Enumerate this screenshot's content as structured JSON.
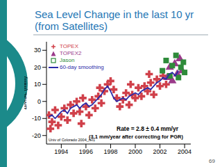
{
  "page_number": 69,
  "chart_data": {
    "type": "scatter",
    "title": "Sea Level Change in the last 10 yr (from Satellites)",
    "y_label": "ΔMSL (mm)",
    "annotations": [
      "Rate = 2.8 ± 0.4 mm/yr",
      "(3.1 mm/year after correcting for PGR)",
      "Univ of Colorado 2004_rel1"
    ],
    "legend": "top-left",
    "xlim": [
      1992.8,
      2004.5
    ],
    "xticks": [
      1994,
      1996,
      1998,
      2000,
      2002,
      2004
    ],
    "ylim": [
      -25,
      35
    ],
    "yticks": [
      -20,
      -10,
      0,
      10,
      20,
      30
    ],
    "series": [
      {
        "name": "TOPEX",
        "type": "scatter",
        "color": "#d0404a",
        "marker": "cross",
        "x": [
          1993.0,
          1993.125,
          1993.25,
          1993.5,
          1993.75,
          1994.0,
          1994.25,
          1994.5,
          1994.75,
          1995.0,
          1995.25,
          1995.5,
          1995.625,
          1995.75,
          1996.0,
          1996.25,
          1996.5,
          1996.75,
          1997.0,
          1997.125,
          1997.25,
          1997.5,
          1997.75,
          1998.0,
          1998.25,
          1998.5,
          1998.75,
          1999.0,
          1999.25,
          1999.5,
          1999.625,
          1999.75,
          2000.0,
          2000.25,
          2000.5,
          2000.75,
          2001.0,
          2001.125,
          2001.25,
          2001.5,
          2001.75,
          2002.0,
          2002.25,
          2002.5
        ],
        "values": [
          -8,
          -16,
          -12,
          -5,
          -14,
          -9,
          -4,
          -11,
          -2,
          -7,
          0,
          -6,
          -13,
          2,
          -3,
          -8,
          1,
          -4,
          3,
          8,
          -1,
          6,
          10,
          12,
          7,
          2,
          -3,
          1,
          5,
          -2,
          10,
          4,
          2,
          8,
          3,
          9,
          6,
          16,
          11,
          4,
          13,
          9,
          15,
          10
        ]
      },
      {
        "name": "TOPEX2",
        "type": "scatter",
        "color": "#9a3a8a",
        "marker": "triangle",
        "x": [
          2002.6,
          2002.8,
          2003.0,
          2003.2,
          2003.4,
          2003.6,
          2003.8
        ],
        "values": [
          14,
          20,
          12,
          22,
          16,
          25,
          18
        ]
      },
      {
        "name": "Jason",
        "type": "scatter",
        "color": "#2e8b3a",
        "marker": "square",
        "x": [
          2002.2,
          2002.5,
          2002.8,
          2003.0,
          2003.3,
          2003.5,
          2003.7,
          2003.9,
          2004.0
        ],
        "values": [
          18,
          24,
          15,
          21,
          27,
          14,
          20,
          23,
          17
        ]
      },
      {
        "name": "60-day smoothing",
        "type": "line",
        "color": "#2a2aa8",
        "line_style": "solid",
        "x": [
          1993.0,
          1993.25,
          1993.5,
          1993.75,
          1994.0,
          1994.25,
          1994.5,
          1994.75,
          1995.0,
          1995.25,
          1995.5,
          1995.75,
          1996.0,
          1996.25,
          1996.5,
          1996.75,
          1997.0,
          1997.25,
          1997.5,
          1997.75,
          1998.0,
          1998.25,
          1998.5,
          1998.75,
          1999.0,
          1999.25,
          1999.5,
          1999.75,
          2000.0,
          2000.25,
          2000.5,
          2000.75,
          2001.0,
          2001.25,
          2001.5,
          2001.75,
          2002.0,
          2002.25,
          2002.5,
          2002.75,
          2003.0,
          2003.25,
          2003.5
        ],
        "values": [
          -9,
          -8,
          -10,
          -8,
          -6,
          -5,
          -7,
          -4,
          -3,
          -2,
          -4,
          -2,
          -1,
          -3,
          -2,
          0,
          2,
          4,
          7,
          9,
          6,
          2,
          0,
          1,
          2,
          1,
          3,
          4,
          5,
          4,
          6,
          7,
          8,
          7,
          9,
          11,
          12,
          14,
          13,
          16,
          17,
          15,
          18
        ]
      }
    ]
  }
}
